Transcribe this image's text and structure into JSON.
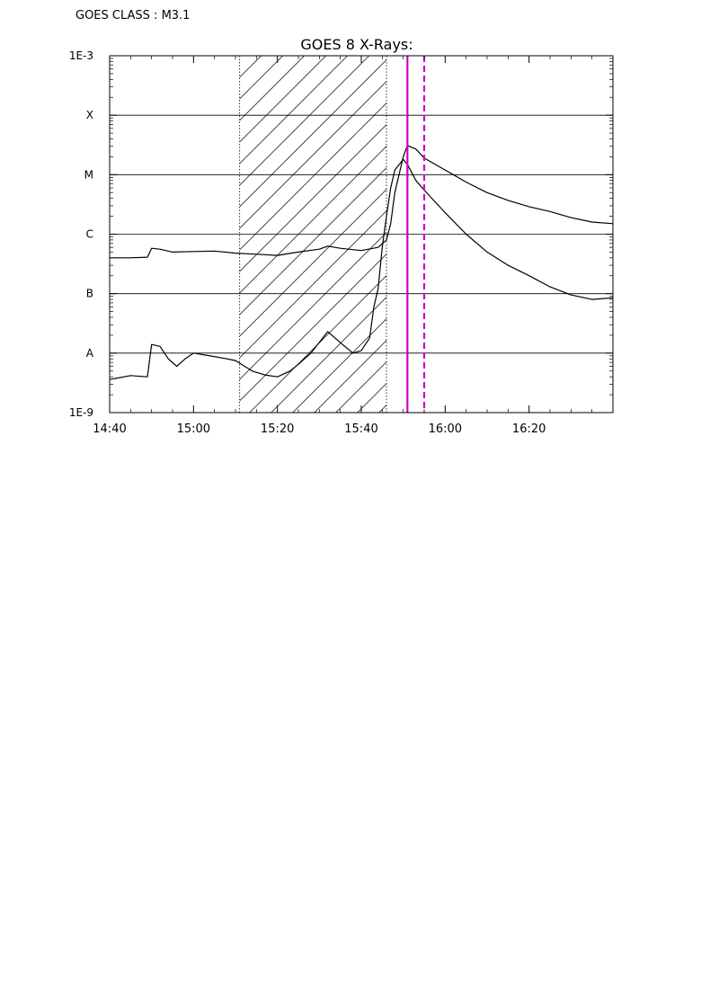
{
  "header": {
    "class_label": "GOES CLASS : M3.1"
  },
  "chart_data": {
    "type": "line",
    "title": "GOES 8 X-Rays:",
    "xlabel": "",
    "ylabel": "",
    "y_scale": "log",
    "ylim": [
      "1E-9",
      "1E-3"
    ],
    "y_tick_labels": [
      "1E-3",
      "X",
      "M",
      "C",
      "B",
      "A",
      "1E-9"
    ],
    "x_tick_labels": [
      "14:40",
      "15:00",
      "15:20",
      "15:40",
      "16:00",
      "16:20"
    ],
    "xlim": [
      "14:40",
      "16:40"
    ],
    "grid": "horizontal",
    "shaded_interval": {
      "start": "15:11",
      "end": "15:46",
      "style": "hatched"
    },
    "markers": [
      {
        "time": "15:51",
        "style": "solid",
        "color": "#cc00cc"
      },
      {
        "time": "15:55",
        "style": "dashed",
        "color": "#cc00cc"
      }
    ],
    "series": [
      {
        "x": [
          "14:40",
          "14:45",
          "14:49",
          "14:50",
          "14:52",
          "14:55",
          "15:00",
          "15:05",
          "15:10",
          "15:15",
          "15:20",
          "15:25",
          "15:30",
          "15:32",
          "15:35",
          "15:40",
          "15:44",
          "15:46",
          "15:47",
          "15:48",
          "15:50",
          "15:51",
          "15:53",
          "15:55",
          "16:00",
          "16:05",
          "16:10",
          "16:15",
          "16:20",
          "16:25",
          "16:30",
          "16:35",
          "16:40"
        ],
        "y": [
          4e-07,
          4e-07,
          4.1e-07,
          5.8e-07,
          5.6e-07,
          5e-07,
          5.1e-07,
          5.2e-07,
          4.8e-07,
          4.6e-07,
          4.4e-07,
          5e-07,
          5.6e-07,
          6.3e-07,
          5.8e-07,
          5.3e-07,
          6e-07,
          8e-07,
          1.5e-06,
          5e-06,
          2e-05,
          3.1e-05,
          2.7e-05,
          1.9e-05,
          1.2e-05,
          7.5e-06,
          5e-06,
          3.7e-06,
          2.9e-06,
          2.4e-06,
          1.9e-06,
          1.6e-06,
          1.5e-06
        ],
        "color": "#000000"
      },
      {
        "x": [
          "14:40",
          "14:45",
          "14:49",
          "14:50",
          "14:52",
          "14:54",
          "14:56",
          "14:58",
          "15:00",
          "15:04",
          "15:08",
          "15:10",
          "15:14",
          "15:17",
          "15:20",
          "15:23",
          "15:25",
          "15:28",
          "15:32",
          "15:35",
          "15:38",
          "15:40",
          "15:42",
          "15:43",
          "15:44",
          "15:45",
          "15:46",
          "15:47",
          "15:48",
          "15:50",
          "15:51",
          "15:53",
          "15:55",
          "16:00",
          "16:05",
          "16:10",
          "16:15",
          "16:20",
          "16:25",
          "16:30",
          "16:35",
          "16:40"
        ],
        "y": [
          3.6e-09,
          4.2e-09,
          4e-09,
          1.4e-08,
          1.3e-08,
          8e-09,
          6e-09,
          8e-09,
          1e-08,
          9e-09,
          8e-09,
          7.5e-09,
          5e-09,
          4.3e-09,
          4e-09,
          5e-09,
          6.5e-09,
          1e-08,
          2.3e-08,
          1.5e-08,
          1e-08,
          1.1e-08,
          1.8e-08,
          6e-08,
          1.2e-07,
          6e-07,
          2e-06,
          6e-06,
          1.2e-05,
          1.8e-05,
          1.5e-05,
          8e-06,
          5.5e-06,
          2.3e-06,
          1e-06,
          5e-07,
          3e-07,
          2e-07,
          1.3e-07,
          9.5e-08,
          8e-08,
          8.5e-08
        ],
        "color": "#000000"
      }
    ]
  }
}
